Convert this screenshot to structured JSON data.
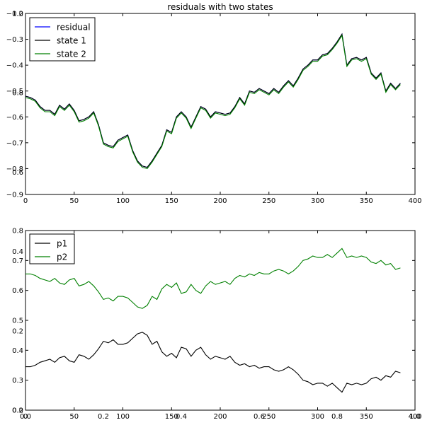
{
  "chart_data": [
    {
      "type": "line",
      "title": "residuals with two states",
      "xlim": [
        0,
        400
      ],
      "ylim": [
        -0.9,
        -0.2
      ],
      "x_ticks": [
        0,
        50,
        100,
        150,
        200,
        250,
        300,
        350,
        400
      ],
      "y_ticks": [
        -0.9,
        -0.8,
        -0.7,
        -0.6,
        -0.5,
        -0.4,
        -0.3,
        -0.2
      ],
      "legend_position": "top-left",
      "x": [
        0,
        5,
        10,
        15,
        20,
        25,
        30,
        35,
        40,
        45,
        50,
        55,
        60,
        65,
        70,
        75,
        80,
        85,
        90,
        95,
        100,
        105,
        110,
        115,
        120,
        125,
        130,
        135,
        140,
        145,
        150,
        155,
        160,
        165,
        170,
        175,
        180,
        185,
        190,
        195,
        200,
        205,
        210,
        215,
        220,
        225,
        230,
        235,
        240,
        245,
        250,
        255,
        260,
        265,
        270,
        275,
        280,
        285,
        290,
        295,
        300,
        305,
        310,
        315,
        320,
        325,
        330,
        335,
        340,
        345,
        350,
        355,
        360,
        365,
        370,
        375,
        380,
        385
      ],
      "series": [
        {
          "name": "residual",
          "color": "#0000ff",
          "values": [
            -0.52,
            -0.525,
            -0.535,
            -0.56,
            -0.575,
            -0.575,
            -0.59,
            -0.555,
            -0.57,
            -0.55,
            -0.575,
            -0.615,
            -0.61,
            -0.6,
            -0.58,
            -0.63,
            -0.7,
            -0.71,
            -0.715,
            -0.69,
            -0.68,
            -0.67,
            -0.73,
            -0.77,
            -0.79,
            -0.795,
            -0.77,
            -0.74,
            -0.71,
            -0.65,
            -0.66,
            -0.6,
            -0.58,
            -0.6,
            -0.64,
            -0.6,
            -0.56,
            -0.57,
            -0.6,
            -0.58,
            -0.585,
            -0.59,
            -0.585,
            -0.56,
            -0.525,
            -0.55,
            -0.5,
            -0.505,
            -0.49,
            -0.5,
            -0.51,
            -0.49,
            -0.505,
            -0.48,
            -0.46,
            -0.48,
            -0.45,
            -0.415,
            -0.4,
            -0.38,
            -0.38,
            -0.36,
            -0.355,
            -0.335,
            -0.31,
            -0.28,
            -0.4,
            -0.375,
            -0.37,
            -0.38,
            -0.37,
            -0.43,
            -0.45,
            -0.43,
            -0.5,
            -0.47,
            -0.49,
            -0.47
          ]
        },
        {
          "name": "state 1",
          "color": "#000000",
          "values": [
            -0.52,
            -0.525,
            -0.535,
            -0.56,
            -0.575,
            -0.575,
            -0.59,
            -0.555,
            -0.57,
            -0.55,
            -0.575,
            -0.615,
            -0.61,
            -0.6,
            -0.58,
            -0.63,
            -0.7,
            -0.71,
            -0.715,
            -0.69,
            -0.68,
            -0.67,
            -0.73,
            -0.77,
            -0.79,
            -0.795,
            -0.77,
            -0.74,
            -0.71,
            -0.65,
            -0.66,
            -0.6,
            -0.58,
            -0.6,
            -0.64,
            -0.6,
            -0.56,
            -0.57,
            -0.6,
            -0.58,
            -0.585,
            -0.59,
            -0.585,
            -0.56,
            -0.525,
            -0.55,
            -0.5,
            -0.505,
            -0.49,
            -0.5,
            -0.51,
            -0.49,
            -0.505,
            -0.48,
            -0.46,
            -0.48,
            -0.45,
            -0.415,
            -0.4,
            -0.38,
            -0.38,
            -0.36,
            -0.355,
            -0.335,
            -0.31,
            -0.28,
            -0.4,
            -0.375,
            -0.37,
            -0.38,
            -0.37,
            -0.43,
            -0.45,
            -0.43,
            -0.5,
            -0.47,
            -0.49,
            -0.47
          ]
        },
        {
          "name": "state 2",
          "color": "#008000",
          "values": [
            -0.525,
            -0.53,
            -0.54,
            -0.565,
            -0.58,
            -0.58,
            -0.595,
            -0.56,
            -0.575,
            -0.555,
            -0.58,
            -0.62,
            -0.615,
            -0.605,
            -0.585,
            -0.635,
            -0.705,
            -0.715,
            -0.72,
            -0.695,
            -0.685,
            -0.675,
            -0.735,
            -0.775,
            -0.795,
            -0.8,
            -0.775,
            -0.745,
            -0.715,
            -0.655,
            -0.665,
            -0.605,
            -0.585,
            -0.605,
            -0.645,
            -0.605,
            -0.565,
            -0.575,
            -0.605,
            -0.585,
            -0.59,
            -0.595,
            -0.59,
            -0.565,
            -0.53,
            -0.555,
            -0.505,
            -0.51,
            -0.495,
            -0.505,
            -0.515,
            -0.495,
            -0.51,
            -0.485,
            -0.465,
            -0.485,
            -0.455,
            -0.42,
            -0.405,
            -0.385,
            -0.385,
            -0.365,
            -0.36,
            -0.34,
            -0.315,
            -0.285,
            -0.405,
            -0.38,
            -0.375,
            -0.385,
            -0.375,
            -0.435,
            -0.455,
            -0.435,
            -0.505,
            -0.475,
            -0.495,
            -0.475
          ]
        }
      ]
    },
    {
      "type": "line",
      "title": "",
      "xlim": [
        0,
        400
      ],
      "ylim": [
        0.2,
        0.8
      ],
      "x_ticks": [
        0,
        50,
        100,
        150,
        200,
        250,
        300,
        350,
        400
      ],
      "y_ticks": [
        0.2,
        0.3,
        0.4,
        0.5,
        0.6,
        0.7,
        0.8
      ],
      "legend_position": "top-left",
      "x": [
        0,
        5,
        10,
        15,
        20,
        25,
        30,
        35,
        40,
        45,
        50,
        55,
        60,
        65,
        70,
        75,
        80,
        85,
        90,
        95,
        100,
        105,
        110,
        115,
        120,
        125,
        130,
        135,
        140,
        145,
        150,
        155,
        160,
        165,
        170,
        175,
        180,
        185,
        190,
        195,
        200,
        205,
        210,
        215,
        220,
        225,
        230,
        235,
        240,
        245,
        250,
        255,
        260,
        265,
        270,
        275,
        280,
        285,
        290,
        295,
        300,
        305,
        310,
        315,
        320,
        325,
        330,
        335,
        340,
        345,
        350,
        355,
        360,
        365,
        370,
        375,
        380,
        385
      ],
      "series": [
        {
          "name": "p1",
          "color": "#000000",
          "values": [
            0.345,
            0.345,
            0.35,
            0.36,
            0.365,
            0.37,
            0.36,
            0.375,
            0.38,
            0.365,
            0.36,
            0.385,
            0.38,
            0.37,
            0.385,
            0.405,
            0.43,
            0.425,
            0.435,
            0.42,
            0.42,
            0.425,
            0.44,
            0.455,
            0.46,
            0.45,
            0.42,
            0.43,
            0.395,
            0.38,
            0.39,
            0.375,
            0.41,
            0.405,
            0.38,
            0.4,
            0.41,
            0.385,
            0.37,
            0.38,
            0.375,
            0.37,
            0.38,
            0.36,
            0.35,
            0.355,
            0.345,
            0.35,
            0.34,
            0.345,
            0.345,
            0.335,
            0.33,
            0.335,
            0.345,
            0.335,
            0.32,
            0.3,
            0.295,
            0.285,
            0.29,
            0.29,
            0.28,
            0.29,
            0.275,
            0.26,
            0.29,
            0.285,
            0.29,
            0.285,
            0.29,
            0.305,
            0.31,
            0.3,
            0.315,
            0.31,
            0.33,
            0.325
          ]
        },
        {
          "name": "p2",
          "color": "#008000",
          "values": [
            0.655,
            0.655,
            0.65,
            0.64,
            0.635,
            0.63,
            0.64,
            0.625,
            0.62,
            0.635,
            0.64,
            0.615,
            0.62,
            0.63,
            0.615,
            0.595,
            0.57,
            0.575,
            0.565,
            0.58,
            0.58,
            0.575,
            0.56,
            0.545,
            0.54,
            0.55,
            0.58,
            0.57,
            0.605,
            0.62,
            0.61,
            0.625,
            0.59,
            0.595,
            0.62,
            0.6,
            0.59,
            0.615,
            0.63,
            0.62,
            0.625,
            0.63,
            0.62,
            0.64,
            0.65,
            0.645,
            0.655,
            0.65,
            0.66,
            0.655,
            0.655,
            0.665,
            0.67,
            0.665,
            0.655,
            0.665,
            0.68,
            0.7,
            0.705,
            0.715,
            0.71,
            0.71,
            0.72,
            0.71,
            0.725,
            0.74,
            0.71,
            0.715,
            0.71,
            0.715,
            0.71,
            0.695,
            0.69,
            0.7,
            0.685,
            0.69,
            0.67,
            0.675
          ]
        }
      ]
    },
    {
      "type": "line",
      "title": "",
      "xlim": [
        0.0,
        1.0
      ],
      "ylim": [
        0.0,
        1.0
      ],
      "x_ticks": [
        "0.0",
        "0.2",
        "0.4",
        "0.6",
        "0.8",
        "1.0"
      ],
      "y_ticks": [
        "0.0",
        "0.2",
        "0.4",
        "0.6",
        "0.8",
        "1.0"
      ],
      "series": []
    }
  ]
}
